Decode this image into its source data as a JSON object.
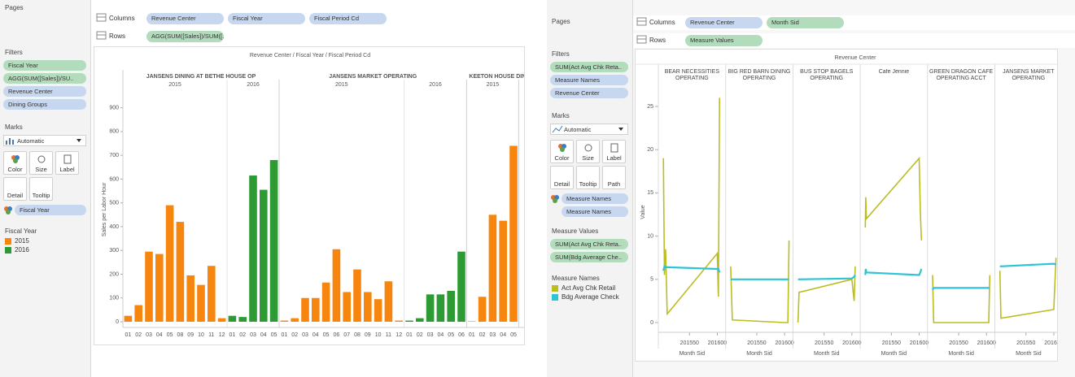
{
  "left_ui": {
    "pages": "Pages",
    "columns_label": "Columns",
    "columns": [
      "Revenue Center",
      "Fiscal Year",
      "Fiscal Period Cd"
    ],
    "rows_label": "Rows",
    "rows": [
      "AGG(SUM([Sales])/SUM([.."
    ],
    "filters_title": "Filters",
    "filters": [
      "Fiscal Year",
      "AGG(SUM([Sales])/SU..",
      "Revenue Center",
      "Dining Groups"
    ],
    "marks_title": "Marks",
    "mark_type": "Automatic",
    "mark_buttons": [
      "Color",
      "Size",
      "Label",
      "Detail",
      "Tooltip"
    ],
    "mark_pills": [
      "Fiscal Year"
    ],
    "legend_title": "Fiscal Year"
  },
  "right_ui": {
    "pages": "Pages",
    "columns_label": "Columns",
    "columns": [
      "Revenue Center",
      "Month Sid"
    ],
    "rows_label": "Rows",
    "rows": [
      "Measure Values"
    ],
    "filters_title": "Filters",
    "filters": [
      "SUM(Act Avg Chk Reta..",
      "Measure Names",
      "Revenue Center"
    ],
    "marks_title": "Marks",
    "mark_type": "Automatic",
    "mark_buttons": [
      "Color",
      "Size",
      "Label",
      "Detail",
      "Tooltip",
      "Path"
    ],
    "mark_pills": [
      "Measure Names",
      "Measure Names"
    ],
    "values_title": "Measure Values",
    "values_pills": [
      "SUM(Act Avg Chk Reta..",
      "SUM(Bdg Average Che.."
    ],
    "legend_title": "Measure Names"
  },
  "chart_data": [
    {
      "type": "bar",
      "title": "Revenue Center / Fiscal Year / Fiscal Period Cd",
      "y_label": "Sales per Labor Hour",
      "ylim": [
        0,
        950
      ],
      "yticks": [
        0,
        100,
        200,
        300,
        400,
        500,
        600,
        700,
        800,
        900
      ],
      "legend": [
        {
          "name": "2015",
          "color": "#f7860f"
        },
        {
          "name": "2016",
          "color": "#2e9a34"
        }
      ],
      "panes": [
        {
          "name": "JANSENS DINING AT BETHE HOUSE OP",
          "years": [
            {
              "name": "2015",
              "categories": [
                "01",
                "02",
                "03",
                "04",
                "05",
                "08",
                "09",
                "10",
                "11",
                "12"
              ],
              "values": [
                25,
                70,
                295,
                285,
                490,
                420,
                195,
                155,
                235,
                15
              ]
            },
            {
              "name": "2016",
              "categories": [
                "01",
                "02",
                "03",
                "04",
                "05"
              ],
              "values": [
                25,
                20,
                615,
                555,
                680
              ]
            }
          ]
        },
        {
          "name": "JANSENS MARKET OPERATING",
          "years": [
            {
              "name": "2015",
              "categories": [
                "01",
                "02",
                "03",
                "04",
                "05",
                "06",
                "07",
                "08",
                "09",
                "10",
                "11",
                "12"
              ],
              "values": [
                5,
                15,
                100,
                100,
                165,
                305,
                125,
                220,
                125,
                95,
                170,
                5
              ]
            },
            {
              "name": "2016",
              "categories": [
                "01",
                "02",
                "03",
                "04",
                "05",
                "06"
              ],
              "values": [
                5,
                15,
                115,
                115,
                130,
                295
              ]
            }
          ]
        },
        {
          "name": "KEETON HOUSE DIN",
          "years": [
            {
              "name": "2015",
              "categories": [
                "01",
                "02",
                "03",
                "04",
                "05"
              ],
              "values": [
                2,
                105,
                450,
                425,
                740
              ]
            }
          ]
        }
      ]
    },
    {
      "type": "line",
      "title": "Revenue Center",
      "y_label": "Value",
      "x_label": "Month Sid",
      "ylim": [
        -1,
        27
      ],
      "yticks": [
        0,
        5,
        10,
        15,
        20,
        25
      ],
      "xlim": [
        201494,
        201615
      ],
      "xticks": [
        201550,
        201600
      ],
      "series": [
        {
          "name": "Act Avg Chk Retail",
          "color": "#bcbd22"
        },
        {
          "name": "Bdg Average Check",
          "color": "#2ec4d6"
        }
      ],
      "panes": [
        {
          "name": "BEAR NECESSITIES OPERATING",
          "x": [
            201503,
            201505,
            201507,
            201510,
            201600,
            201602,
            201604
          ],
          "values": [
            [
              19,
              5.5,
              8.5,
              1,
              8,
              3,
              26
            ],
            [
              6,
              6.5,
              6.4,
              6.4,
              6.2,
              6.2,
              5.8
            ]
          ]
        },
        {
          "name": "BIG RED BARN DINING OPERATING",
          "x": [
            201503,
            201506,
            201600,
            201606,
            201608
          ],
          "values": [
            [
              6.5,
              0.3,
              0,
              0,
              9.5
            ],
            [
              5,
              5,
              5,
              5,
              5
            ]
          ]
        },
        {
          "name": "BUS STOP BAGELS OPERATING",
          "x": [
            201503,
            201505,
            201600,
            201604,
            201606
          ],
          "values": [
            [
              0,
              3.5,
              5,
              2.5,
              6.5
            ],
            [
              5,
              5,
              5.1,
              5.3,
              5.5
            ]
          ]
        },
        {
          "name": "Cafe Jennie",
          "x": [
            201503,
            201504,
            201505,
            201600,
            201602,
            201604
          ],
          "values": [
            [
              11,
              14.5,
              12,
              19,
              13,
              9.5
            ],
            [
              5.5,
              6.2,
              5.8,
              5.5,
              5.8,
              6.2
            ]
          ]
        },
        {
          "name": "GREEN DRAGON CAFE OPERATING ACCT",
          "x": [
            201503,
            201505,
            201600,
            201604,
            201606
          ],
          "values": [
            [
              5.5,
              0,
              0,
              0,
              5.5
            ],
            [
              3.8,
              4,
              4,
              4,
              4
            ]
          ]
        },
        {
          "name": "JANSENS MARKET OPERATING",
          "x": [
            201503,
            201505,
            201600,
            201604
          ],
          "values": [
            [
              6,
              0.5,
              1.5,
              7.5
            ],
            [
              6.5,
              6.5,
              6.8,
              6.7
            ]
          ]
        }
      ]
    }
  ]
}
